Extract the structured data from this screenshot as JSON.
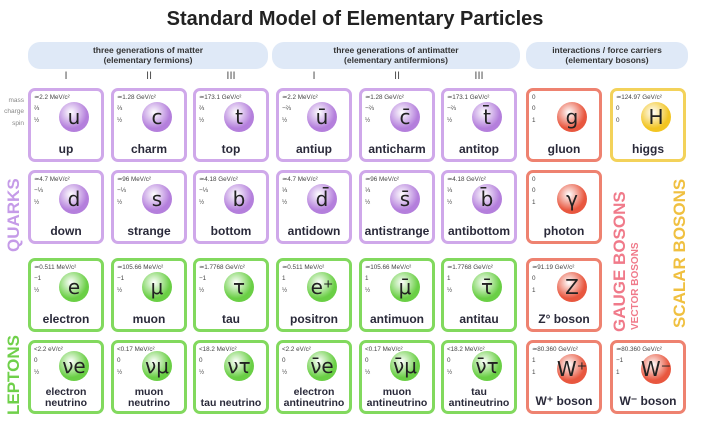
{
  "title": "Standard Model of Elementary Particles",
  "banners": {
    "matter": [
      "three generations of matter",
      "(elementary fermions)"
    ],
    "antimatter": [
      "three generations of antimatter",
      "(elementary antifermions)"
    ],
    "bosons": [
      "interactions / force carriers",
      "(elementary bosons)"
    ]
  },
  "generations": [
    "I",
    "II",
    "III",
    "I",
    "II",
    "III"
  ],
  "row_labels": [
    "mass",
    "charge",
    "spin"
  ],
  "group_labels": {
    "quarks": "QUARKS",
    "leptons": "LEPTONS",
    "gauge": "GAUGE BOSONS",
    "vector": "VECTOR BOSONS",
    "scalar": "SCALAR BOSONS"
  },
  "colors": {
    "quark_border": "#cfa8ea",
    "quark_fill": "#b47fdc",
    "lepton_border": "#82d95e",
    "lepton_fill": "#6acf45",
    "gauge_border": "#ee8270",
    "gauge_fill": "#e8573f",
    "scalar_border": "#f3d25a",
    "scalar_fill": "#f2c523",
    "gauge_text": "#f07a8a",
    "scalar_text": "#f0c040"
  },
  "particles": [
    {
      "type": "quark",
      "mass": "≃2.2 MeV/c²",
      "charge": "⅔",
      "spin": "½",
      "symbol": "u",
      "name": "up"
    },
    {
      "type": "quark",
      "mass": "≃1.28 GeV/c²",
      "charge": "⅔",
      "spin": "½",
      "symbol": "c",
      "name": "charm"
    },
    {
      "type": "quark",
      "mass": "≃173.1 GeV/c²",
      "charge": "⅔",
      "spin": "½",
      "symbol": "t",
      "name": "top"
    },
    {
      "type": "quark",
      "mass": "≃2.2 MeV/c²",
      "charge": "−⅔",
      "spin": "½",
      "symbol": "ū",
      "name": "antiup"
    },
    {
      "type": "quark",
      "mass": "≃1.28 GeV/c²",
      "charge": "−⅔",
      "spin": "½",
      "symbol": "c̄",
      "name": "anticharm"
    },
    {
      "type": "quark",
      "mass": "≃173.1 GeV/c²",
      "charge": "−⅔",
      "spin": "½",
      "symbol": "t̄",
      "name": "antitop"
    },
    {
      "type": "gauge",
      "mass": "0",
      "charge": "0",
      "spin": "1",
      "symbol": "g",
      "name": "gluon"
    },
    {
      "type": "scalar",
      "mass": "≃124.97 GeV/c²",
      "charge": "0",
      "spin": "0",
      "symbol": "H",
      "name": "higgs"
    },
    {
      "type": "quark",
      "mass": "≃4.7 MeV/c²",
      "charge": "−⅓",
      "spin": "½",
      "symbol": "d",
      "name": "down"
    },
    {
      "type": "quark",
      "mass": "≃96 MeV/c²",
      "charge": "−⅓",
      "spin": "½",
      "symbol": "s",
      "name": "strange"
    },
    {
      "type": "quark",
      "mass": "≃4.18 GeV/c²",
      "charge": "−⅓",
      "spin": "½",
      "symbol": "b",
      "name": "bottom"
    },
    {
      "type": "quark",
      "mass": "≃4.7 MeV/c²",
      "charge": "⅓",
      "spin": "½",
      "symbol": "d̄",
      "name": "antidown"
    },
    {
      "type": "quark",
      "mass": "≃96 MeV/c²",
      "charge": "⅓",
      "spin": "½",
      "symbol": "s̄",
      "name": "antistrange"
    },
    {
      "type": "quark",
      "mass": "≃4.18 GeV/c²",
      "charge": "⅓",
      "spin": "½",
      "symbol": "b̄",
      "name": "antibottom"
    },
    {
      "type": "gauge",
      "mass": "0",
      "charge": "0",
      "spin": "1",
      "symbol": "γ",
      "name": "photon"
    },
    null,
    {
      "type": "lepton",
      "mass": "≃0.511 MeV/c²",
      "charge": "−1",
      "spin": "½",
      "symbol": "e",
      "name": "electron"
    },
    {
      "type": "lepton",
      "mass": "≃105.66 MeV/c²",
      "charge": "−1",
      "spin": "½",
      "symbol": "μ",
      "name": "muon"
    },
    {
      "type": "lepton",
      "mass": "≃1.7768 GeV/c²",
      "charge": "−1",
      "spin": "½",
      "symbol": "τ",
      "name": "tau"
    },
    {
      "type": "lepton",
      "mass": "≃0.511 MeV/c²",
      "charge": "1",
      "spin": "½",
      "symbol": "e⁺",
      "name": "positron"
    },
    {
      "type": "lepton",
      "mass": "≃105.66 MeV/c²",
      "charge": "1",
      "spin": "½",
      "symbol": "μ̄",
      "name": "antimuon"
    },
    {
      "type": "lepton",
      "mass": "≃1.7768 GeV/c²",
      "charge": "1",
      "spin": "½",
      "symbol": "τ̄",
      "name": "antitau"
    },
    {
      "type": "gauge",
      "mass": "≃91.19 GeV/c²",
      "charge": "0",
      "spin": "1",
      "symbol": "Z",
      "name": "Z° boson"
    },
    null,
    {
      "type": "lepton",
      "mass": "<2.2 eV/c²",
      "charge": "0",
      "spin": "½",
      "symbol": "νe",
      "name": "electron neutrino"
    },
    {
      "type": "lepton",
      "mass": "<0.17 MeV/c²",
      "charge": "0",
      "spin": "½",
      "symbol": "νμ",
      "name": "muon neutrino"
    },
    {
      "type": "lepton",
      "mass": "<18.2 MeV/c²",
      "charge": "0",
      "spin": "½",
      "symbol": "ντ",
      "name": "tau neutrino"
    },
    {
      "type": "lepton",
      "mass": "<2.2 eV/c²",
      "charge": "0",
      "spin": "½",
      "symbol": "ν̄e",
      "name": "electron antineutrino"
    },
    {
      "type": "lepton",
      "mass": "<0.17 MeV/c²",
      "charge": "0",
      "spin": "½",
      "symbol": "ν̄μ",
      "name": "muon antineutrino"
    },
    {
      "type": "lepton",
      "mass": "<18.2 MeV/c²",
      "charge": "0",
      "spin": "½",
      "symbol": "ν̄τ",
      "name": "tau antineutrino"
    },
    {
      "type": "gauge",
      "mass": "≃80.360 GeV/c²",
      "charge": "1",
      "spin": "1",
      "symbol": "W⁺",
      "name": "W⁺ boson"
    },
    {
      "type": "gauge",
      "mass": "≃80.360 GeV/c²",
      "charge": "−1",
      "spin": "1",
      "symbol": "W⁻",
      "name": "W⁻ boson"
    }
  ]
}
